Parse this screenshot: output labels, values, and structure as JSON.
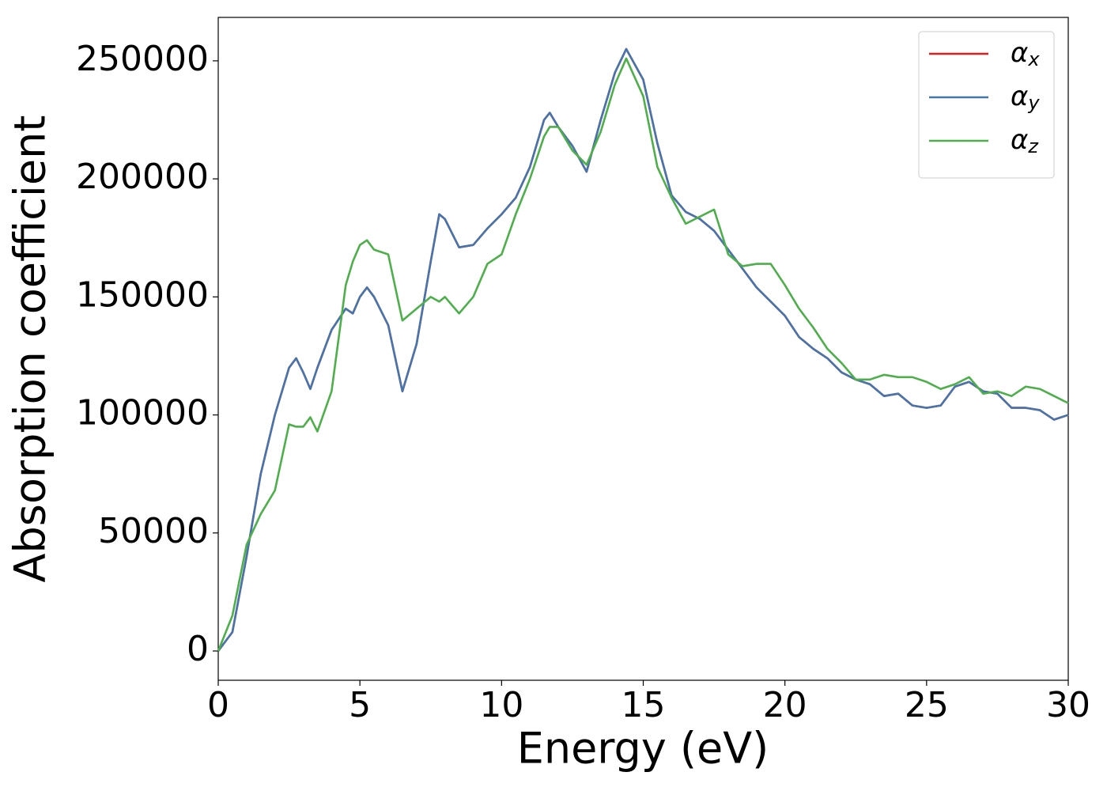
{
  "chart_data": {
    "type": "line",
    "xlabel": "Energy (eV)",
    "ylabel": "Absorption coefficient",
    "xlim": [
      0,
      30
    ],
    "xticks": [
      0,
      5,
      10,
      15,
      20,
      25,
      30
    ],
    "ylim": [
      -12400,
      268400
    ],
    "yticks": [
      0,
      50000,
      100000,
      150000,
      200000,
      250000
    ],
    "grid": false,
    "legend": "upper right",
    "x": [
      0,
      0.5,
      1,
      1.5,
      2,
      2.5,
      2.75,
      3,
      3.25,
      3.5,
      4,
      4.5,
      4.75,
      5,
      5.25,
      5.5,
      6,
      6.5,
      7,
      7.5,
      7.8,
      8,
      8.5,
      9,
      9.5,
      10,
      10.5,
      11,
      11.5,
      11.7,
      12,
      12.5,
      13,
      13.5,
      14,
      14.4,
      15,
      15.5,
      16,
      16.5,
      17,
      17.5,
      18,
      18.5,
      19,
      19.5,
      20,
      20.5,
      21,
      21.5,
      22,
      22.5,
      23,
      23.5,
      24,
      24.5,
      25,
      25.5,
      26,
      26.5,
      27,
      27.5,
      28,
      28.5,
      29,
      29.5,
      30
    ],
    "series": [
      {
        "name": "α_x",
        "color": "#e41a1c",
        "values": [
          0,
          8000,
          40000,
          75000,
          100000,
          120000,
          124000,
          118000,
          111000,
          120000,
          136000,
          145000,
          143000,
          150000,
          154000,
          150000,
          138000,
          110000,
          130000,
          165000,
          185000,
          183000,
          171000,
          172000,
          179000,
          185000,
          192000,
          205000,
          225000,
          228000,
          222000,
          214000,
          203000,
          225000,
          245000,
          255000,
          242000,
          215000,
          193000,
          186000,
          183000,
          178000,
          170000,
          162000,
          154000,
          148000,
          142000,
          133000,
          128000,
          124000,
          118000,
          115000,
          113000,
          108000,
          109000,
          104000,
          103000,
          104000,
          112000,
          114000,
          110000,
          109000,
          103000,
          103000,
          102000,
          98000,
          100000
        ]
      },
      {
        "name": "α_y",
        "color": "#4575ad",
        "values": [
          0,
          8000,
          40000,
          75000,
          100000,
          120000,
          124000,
          118000,
          111000,
          120000,
          136000,
          145000,
          143000,
          150000,
          154000,
          150000,
          138000,
          110000,
          130000,
          165000,
          185000,
          183000,
          171000,
          172000,
          179000,
          185000,
          192000,
          205000,
          225000,
          228000,
          222000,
          214000,
          203000,
          225000,
          245000,
          255000,
          242000,
          215000,
          193000,
          186000,
          183000,
          178000,
          170000,
          162000,
          154000,
          148000,
          142000,
          133000,
          128000,
          124000,
          118000,
          115000,
          113000,
          108000,
          109000,
          104000,
          103000,
          104000,
          112000,
          114000,
          110000,
          109000,
          103000,
          103000,
          102000,
          98000,
          100000
        ]
      },
      {
        "name": "α_z",
        "color": "#4daf4a",
        "values": [
          0,
          15000,
          45000,
          58000,
          68000,
          96000,
          95000,
          95000,
          99000,
          93000,
          110000,
          155000,
          165000,
          172000,
          174000,
          170000,
          168000,
          140000,
          145000,
          150000,
          148000,
          150000,
          143000,
          150000,
          164000,
          168000,
          185000,
          200000,
          218000,
          222000,
          222000,
          212000,
          206000,
          220000,
          240000,
          251000,
          235000,
          205000,
          192000,
          181000,
          184000,
          187000,
          168000,
          163000,
          164000,
          164000,
          155000,
          145000,
          137000,
          128000,
          122000,
          115000,
          115000,
          117000,
          116000,
          116000,
          114000,
          111000,
          113000,
          116000,
          109000,
          110000,
          108000,
          112000,
          111000,
          108000,
          105000
        ]
      }
    ]
  }
}
